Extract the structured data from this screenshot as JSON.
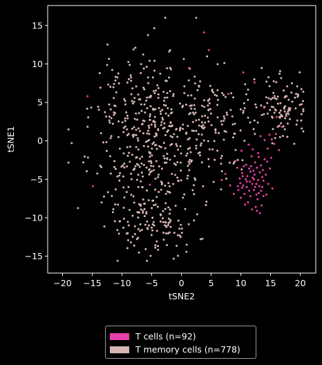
{
  "chart_data": {
    "type": "scatter",
    "xlabel": "tSNE2",
    "ylabel": "tSNE1",
    "xlim": [
      -22.5,
      22.6
    ],
    "ylim": [
      -17.2,
      17.6
    ],
    "xticks": [
      -20,
      -15,
      -10,
      -5,
      0,
      5,
      10,
      15,
      20
    ],
    "yticks": [
      -15,
      -10,
      -5,
      0,
      5,
      10,
      15
    ],
    "grid": false,
    "legend_position": "below",
    "series": [
      {
        "name": "T cells (n=92)",
        "color": "#e83fa8",
        "count": 92,
        "points": [
          [
            10.2,
            -4.2
          ],
          [
            10.8,
            -5.0
          ],
          [
            11.4,
            -3.6
          ],
          [
            12.0,
            -4.8
          ],
          [
            12.6,
            -5.6
          ],
          [
            13.2,
            -4.1
          ],
          [
            13.8,
            -5.2
          ],
          [
            11.0,
            -6.0
          ],
          [
            12.2,
            -6.4
          ],
          [
            13.0,
            -6.8
          ],
          [
            11.6,
            -7.2
          ],
          [
            12.8,
            -7.6
          ],
          [
            10.4,
            -5.8
          ],
          [
            9.8,
            -4.9
          ],
          [
            12.4,
            -2.8
          ],
          [
            13.4,
            -3.2
          ],
          [
            14.0,
            -2.4
          ],
          [
            11.8,
            -2.0
          ],
          [
            12.9,
            -1.6
          ],
          [
            14.2,
            -4.4
          ],
          [
            13.6,
            -6.0
          ],
          [
            11.2,
            -8.0
          ],
          [
            12.5,
            -8.6
          ],
          [
            10.6,
            -6.9
          ],
          [
            9.6,
            -6.4
          ],
          [
            13.8,
            -7.2
          ],
          [
            12.1,
            -3.9
          ],
          [
            11.5,
            -5.3
          ],
          [
            10.9,
            -3.1
          ],
          [
            13.1,
            -5.9
          ],
          [
            14.5,
            -1.0
          ],
          [
            15.2,
            0.2
          ],
          [
            14.8,
            0.8
          ],
          [
            15.6,
            -0.4
          ],
          [
            14.0,
            0.1
          ],
          [
            13.3,
            0.6
          ],
          [
            15.9,
            0.9
          ],
          [
            16.4,
            -1.2
          ],
          [
            15.1,
            -2.2
          ],
          [
            16.0,
            3.1
          ],
          [
            8.2,
            -5.8
          ],
          [
            7.4,
            -4.3
          ],
          [
            6.8,
            -5.1
          ],
          [
            9.1,
            -2.6
          ],
          [
            3.8,
            14.1
          ],
          [
            4.6,
            11.8
          ],
          [
            1.3,
            9.5
          ],
          [
            7.9,
            6.1
          ],
          [
            -15.8,
            5.8
          ],
          [
            -14.9,
            -5.9
          ],
          [
            -5.3,
            -5.7
          ],
          [
            12.3,
            7.6
          ],
          [
            10.4,
            8.9
          ],
          [
            13.9,
            4.3
          ],
          [
            16.9,
            1.8
          ],
          [
            10.1,
            -1.3
          ],
          [
            11.3,
            -0.5
          ],
          [
            9.4,
            -3.5
          ],
          [
            12.7,
            -9.1
          ],
          [
            13.5,
            -8.4
          ],
          [
            14.9,
            -3.6
          ],
          [
            8.8,
            -6.9
          ],
          [
            10.0,
            -7.4
          ],
          [
            11.9,
            -5.6
          ],
          [
            12.3,
            -4.4
          ],
          [
            13.7,
            -3.8
          ],
          [
            11.1,
            -4.6
          ],
          [
            10.5,
            -3.3
          ],
          [
            14.6,
            -5.6
          ],
          [
            15.3,
            -6.2
          ],
          [
            13.0,
            -2.1
          ],
          [
            12.0,
            -1.1
          ],
          [
            11.4,
            -6.5
          ],
          [
            10.2,
            -6.1
          ],
          [
            12.9,
            -5.1
          ],
          [
            13.4,
            -6.5
          ],
          [
            9.9,
            -5.5
          ],
          [
            11.7,
            -3.3
          ],
          [
            14.3,
            -7.0
          ],
          [
            12.6,
            -7.0
          ],
          [
            10.7,
            -8.3
          ],
          [
            11.9,
            -8.9
          ],
          [
            13.2,
            -9.4
          ],
          [
            12.2,
            -5.0
          ],
          [
            11.0,
            -5.3
          ],
          [
            13.6,
            -4.7
          ],
          [
            10.3,
            -4.6
          ],
          [
            12.7,
            -3.5
          ],
          [
            14.4,
            -2.7
          ],
          [
            9.5,
            -5.9
          ],
          [
            11.6,
            -4.0
          ],
          [
            12.4,
            -6.0
          ]
        ]
      },
      {
        "name": "T memory cells (n=778)",
        "color": "#d7b6b3",
        "count": 778
      }
    ]
  }
}
